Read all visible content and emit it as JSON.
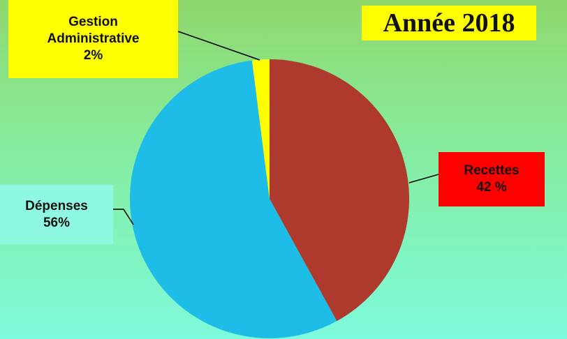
{
  "chart_data": {
    "type": "pie",
    "title": "Année 2018",
    "categories": [
      "Recettes",
      "Dépenses",
      "Gestion Administrative"
    ],
    "values": [
      42,
      56,
      2
    ],
    "value_labels": [
      "42 %",
      "56%",
      "2%"
    ],
    "colors": [
      "#ae3a2d",
      "#1ebde8",
      "#ffff00"
    ]
  }
}
